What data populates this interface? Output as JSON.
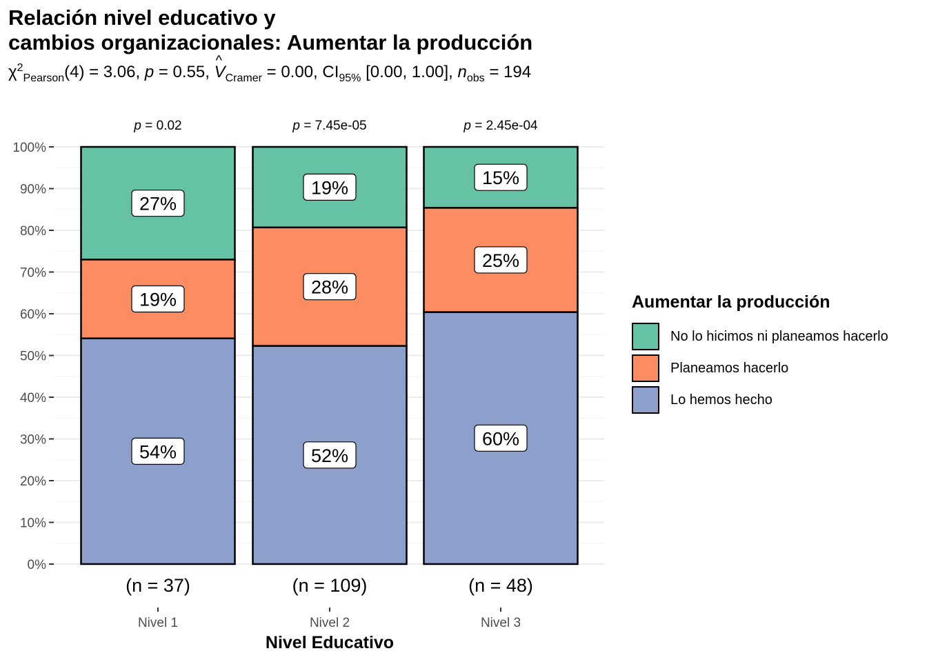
{
  "title_line1": "Relación nivel educativo y",
  "title_line2": "cambios organizacionales: Aumentar la producción",
  "subtitle": {
    "chi_symbol": "χ",
    "chi_sup": "2",
    "chi_sub": "Pearson",
    "chi_value": "(4) = 3.06,",
    "p_label": "p",
    "p_value": "= 0.55,",
    "v_label": "V",
    "v_hat": "^",
    "v_sub": "Cramer",
    "v_value": "= 0.00,",
    "ci_label": "CI",
    "ci_sub": "95%",
    "ci_value": "[0.00, 1.00],",
    "n_label": "n",
    "n_sub": "obs",
    "n_value": "= 194"
  },
  "legend": {
    "title": "Aumentar la producción",
    "items": [
      {
        "label": "No lo hicimos ni planeamos hacerlo",
        "color": "#66c2a5"
      },
      {
        "label": "Planeamos hacerlo",
        "color": "#fc8d62"
      },
      {
        "label": "Lo hemos hecho",
        "color": "#8da0cb"
      }
    ]
  },
  "chart_data": {
    "type": "bar",
    "stacked": true,
    "percent": true,
    "xlabel": "Nivel Educativo",
    "ylabel": "",
    "ylim": [
      0,
      100
    ],
    "yticks": [
      "0%",
      "10%",
      "20%",
      "30%",
      "40%",
      "50%",
      "60%",
      "70%",
      "80%",
      "90%",
      "100%"
    ],
    "categories": [
      "Nivel 1",
      "Nivel 2",
      "Nivel 3"
    ],
    "n_labels": [
      "(n = 37)",
      "(n = 109)",
      "(n = 48)"
    ],
    "p_labels": [
      "= 0.02",
      "= 7.45e-05",
      "= 2.45e-04"
    ],
    "p_symbol": "p",
    "series": [
      {
        "name": "Lo hemos hecho",
        "color": "#8da0cb",
        "values": [
          54.1,
          52.3,
          60.4
        ],
        "labels": [
          "54%",
          "52%",
          "60%"
        ]
      },
      {
        "name": "Planeamos hacerlo",
        "color": "#fc8d62",
        "values": [
          18.9,
          28.4,
          25.0
        ],
        "labels": [
          "19%",
          "28%",
          "25%"
        ]
      },
      {
        "name": "No lo hicimos ni planeamos hacerlo",
        "color": "#66c2a5",
        "values": [
          27.0,
          19.3,
          14.6
        ],
        "labels": [
          "27%",
          "19%",
          "15%"
        ]
      }
    ],
    "grid": true,
    "legend_position": "right"
  }
}
